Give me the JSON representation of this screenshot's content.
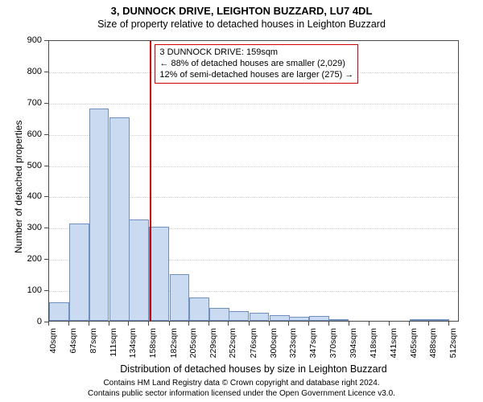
{
  "titles": {
    "line1": "3, DUNNOCK DRIVE, LEIGHTON BUZZARD, LU7 4DL",
    "line2": "Size of property relative to detached houses in Leighton Buzzard"
  },
  "chart": {
    "type": "histogram",
    "ylabel": "Number of detached properties",
    "xlabel": "Distribution of detached houses by size in Leighton Buzzard",
    "ylim": [
      0,
      900
    ],
    "yticks": [
      0,
      100,
      200,
      300,
      400,
      500,
      600,
      700,
      800,
      900
    ],
    "xlim": [
      40,
      524
    ],
    "xticks": [
      40,
      64,
      87,
      111,
      134,
      158,
      182,
      205,
      229,
      252,
      276,
      300,
      323,
      347,
      370,
      394,
      418,
      441,
      465,
      488,
      512
    ],
    "xtick_suffix": "sqm",
    "bar_color": "#c9daf1",
    "bar_border": "#6f8fbe",
    "background_color": "#ffffff",
    "grid_color": "#d0d0d0",
    "axis_color": "#4a4a4a",
    "label_fontsize": 12,
    "tick_fontsize": 11,
    "bars": [
      {
        "x": 40,
        "v": 60
      },
      {
        "x": 64,
        "v": 310
      },
      {
        "x": 87,
        "v": 680
      },
      {
        "x": 111,
        "v": 650
      },
      {
        "x": 134,
        "v": 323
      },
      {
        "x": 158,
        "v": 300
      },
      {
        "x": 182,
        "v": 150
      },
      {
        "x": 205,
        "v": 75
      },
      {
        "x": 229,
        "v": 40
      },
      {
        "x": 252,
        "v": 30
      },
      {
        "x": 276,
        "v": 25
      },
      {
        "x": 300,
        "v": 18
      },
      {
        "x": 323,
        "v": 12
      },
      {
        "x": 347,
        "v": 15
      },
      {
        "x": 370,
        "v": 3
      },
      {
        "x": 394,
        "v": 0
      },
      {
        "x": 418,
        "v": 0
      },
      {
        "x": 441,
        "v": 0
      },
      {
        "x": 465,
        "v": 2
      },
      {
        "x": 488,
        "v": 3
      },
      {
        "x": 512,
        "v": 0
      }
    ],
    "bin_width": 23.5,
    "marker": {
      "x": 159,
      "color": "#cc0000"
    },
    "annotation": {
      "line1": "3 DUNNOCK DRIVE: 159sqm",
      "line2": "← 88% of detached houses are smaller (2,029)",
      "line3": "12% of semi-detached houses are larger (275) →",
      "border_color": "#cc0000",
      "bg_color": "#ffffff",
      "fontsize": 11
    }
  },
  "footer": {
    "line1": "Contains HM Land Registry data © Crown copyright and database right 2024.",
    "line2": "Contains public sector information licensed under the Open Government Licence v3.0."
  }
}
